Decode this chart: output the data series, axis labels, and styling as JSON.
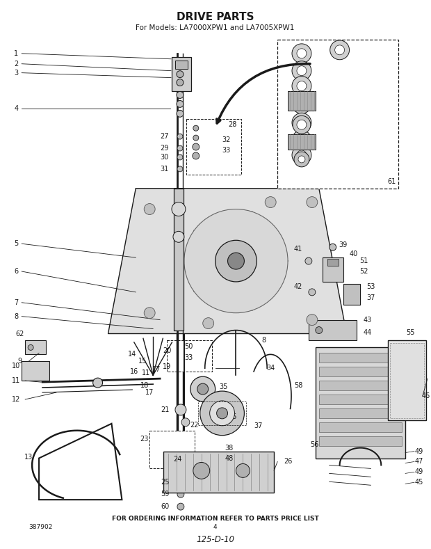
{
  "title": "DRIVE PARTS",
  "subtitle": "For Models: LA7000XPW1 and LA7005XPW1",
  "footer_text": "FOR ORDERING INFORMATION REFER TO PARTS PRICE LIST",
  "page_number": "4",
  "part_number": "387902",
  "doc_code": "125-D-10",
  "bg_color": "#ffffff",
  "title_fontsize": 11,
  "subtitle_fontsize": 7.5,
  "footer_fontsize": 6.5,
  "label_fontsize": 7.0
}
